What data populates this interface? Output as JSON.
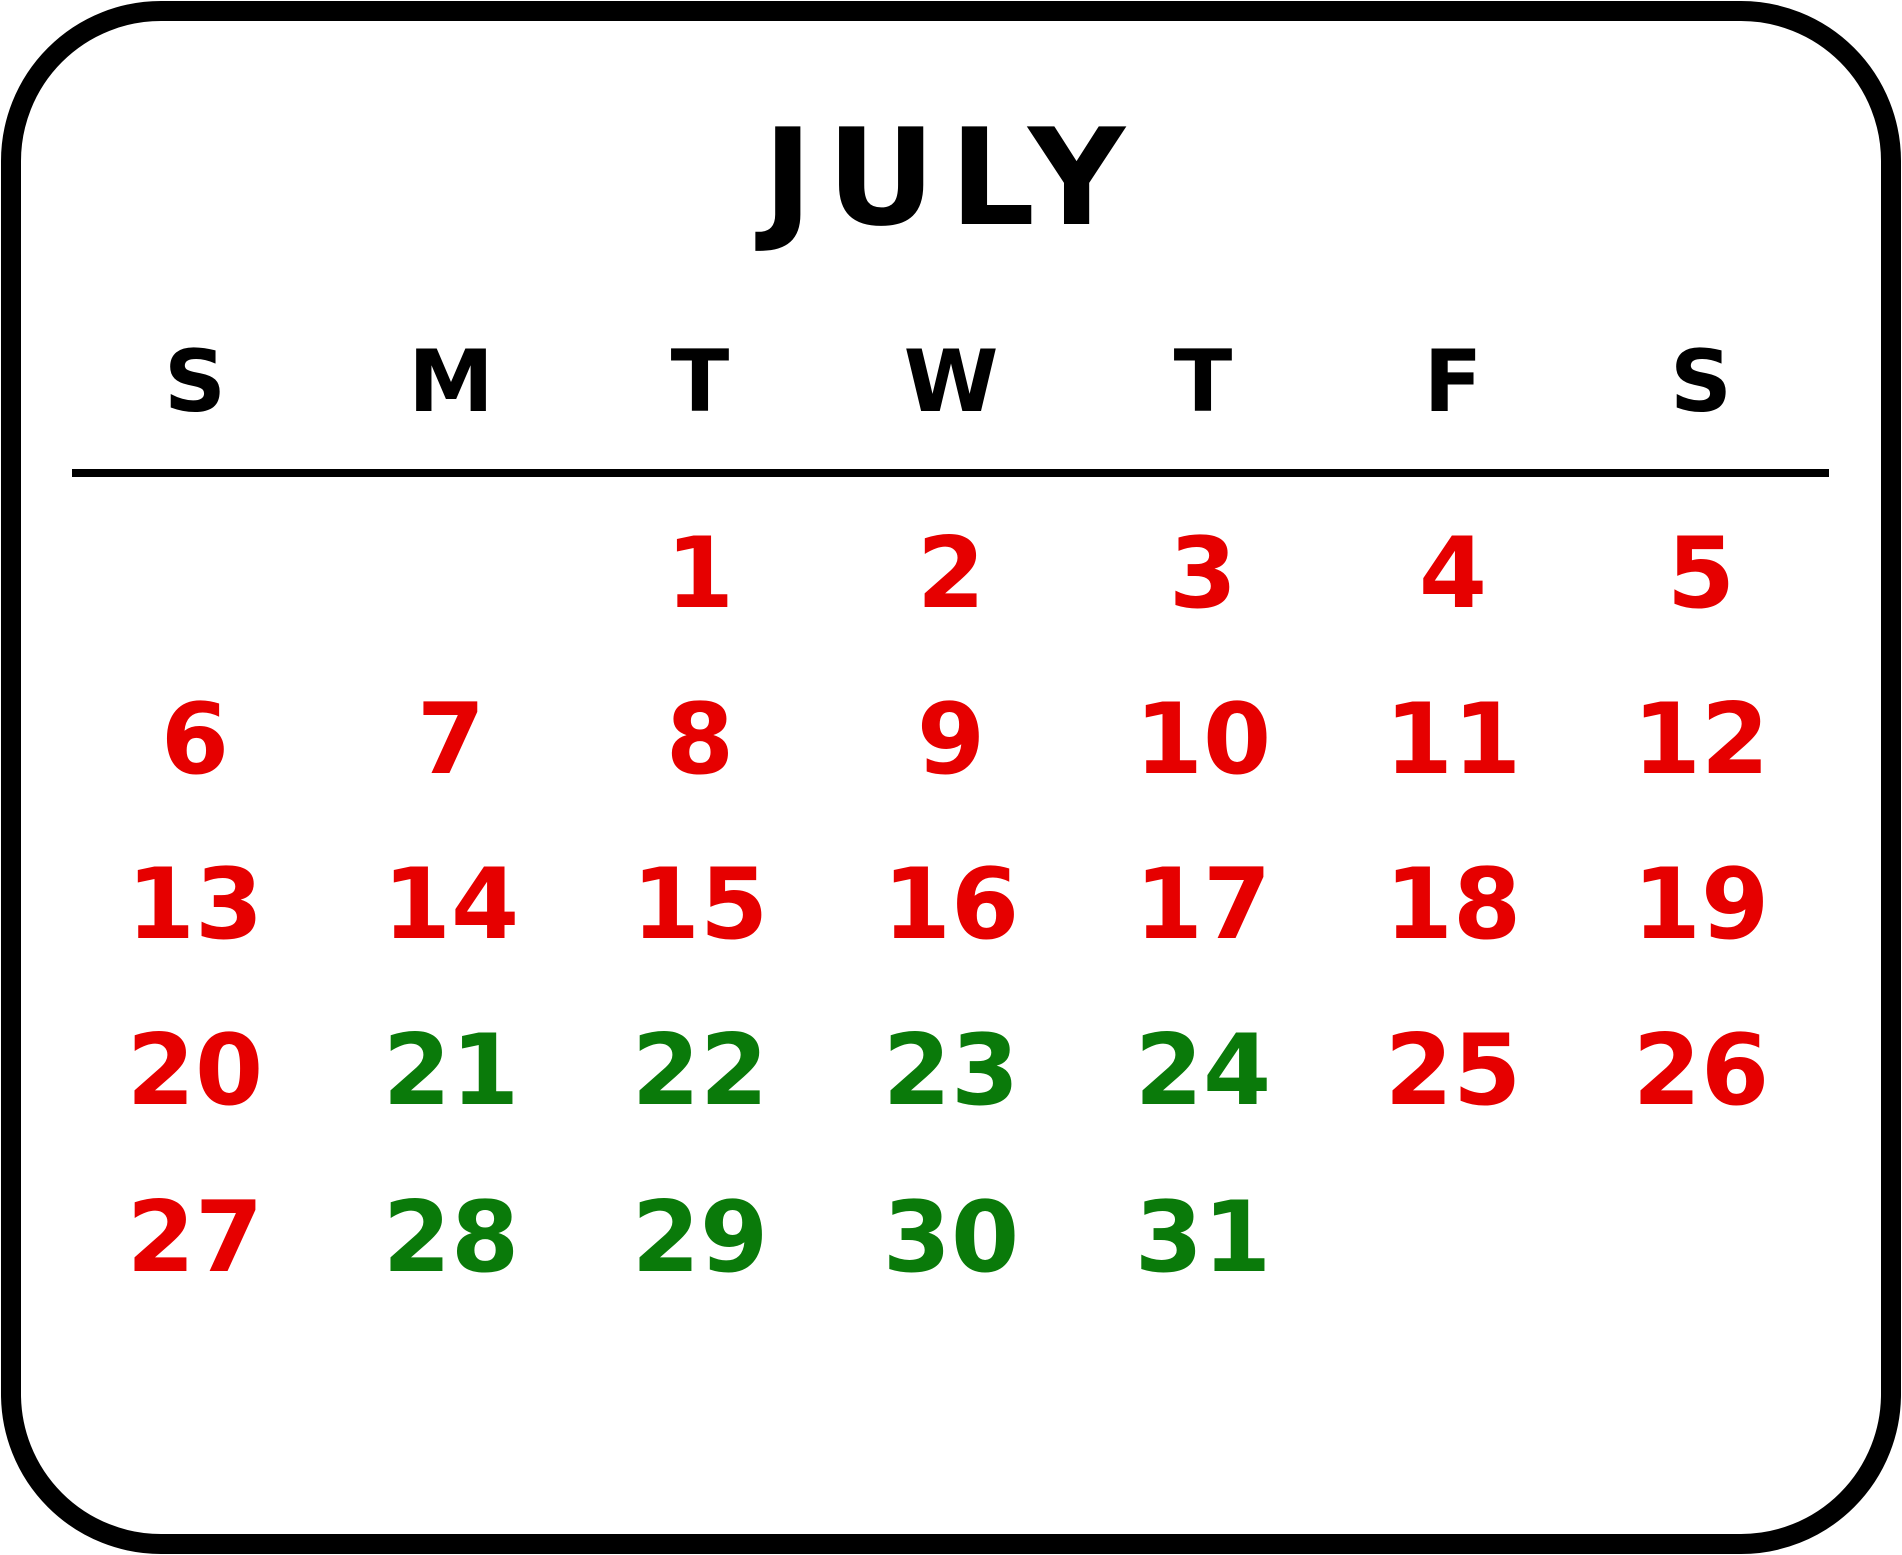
{
  "calendar": {
    "title": "JULY",
    "weekdays": [
      "S",
      "M",
      "T",
      "W",
      "T",
      "F",
      "S"
    ],
    "weeks": [
      [
        null,
        null,
        {
          "label": "1",
          "color": "#e60000"
        },
        {
          "label": "2",
          "color": "#e60000"
        },
        {
          "label": "3",
          "color": "#e60000"
        },
        {
          "label": "4",
          "color": "#e60000"
        },
        {
          "label": "5",
          "color": "#e60000"
        }
      ],
      [
        {
          "label": "6",
          "color": "#e60000"
        },
        {
          "label": "7",
          "color": "#e60000"
        },
        {
          "label": "8",
          "color": "#e60000"
        },
        {
          "label": "9",
          "color": "#e60000"
        },
        {
          "label": "10",
          "color": "#e60000"
        },
        {
          "label": "11",
          "color": "#e60000"
        },
        {
          "label": "12",
          "color": "#e60000"
        }
      ],
      [
        {
          "label": "13",
          "color": "#e60000"
        },
        {
          "label": "14",
          "color": "#e60000"
        },
        {
          "label": "15",
          "color": "#e60000"
        },
        {
          "label": "16",
          "color": "#e60000"
        },
        {
          "label": "17",
          "color": "#e60000"
        },
        {
          "label": "18",
          "color": "#e60000"
        },
        {
          "label": "19",
          "color": "#e60000"
        }
      ],
      [
        {
          "label": "20",
          "color": "#e60000"
        },
        {
          "label": "21",
          "color": "#0a7a0a"
        },
        {
          "label": "22",
          "color": "#0a7a0a"
        },
        {
          "label": "23",
          "color": "#0a7a0a"
        },
        {
          "label": "24",
          "color": "#0a7a0a"
        },
        {
          "label": "25",
          "color": "#e60000"
        },
        {
          "label": "26",
          "color": "#e60000"
        }
      ],
      [
        {
          "label": "27",
          "color": "#e60000"
        },
        {
          "label": "28",
          "color": "#0a7a0a"
        },
        {
          "label": "29",
          "color": "#0a7a0a"
        },
        {
          "label": "30",
          "color": "#0a7a0a"
        },
        {
          "label": "31",
          "color": "#0a7a0a"
        },
        null,
        null
      ]
    ]
  }
}
